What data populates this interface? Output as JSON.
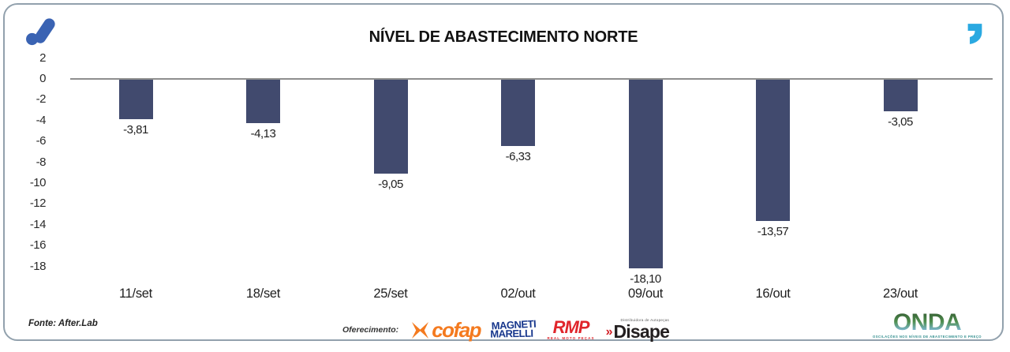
{
  "header": {
    "title": "NÍVEL DE ABASTECIMENTO NORTE",
    "brand_logo_color": "#3a63b3",
    "quote_icon_color": "#2aa9e1"
  },
  "chart_data": {
    "type": "bar",
    "title": "NÍVEL DE ABASTECIMENTO NORTE",
    "categories": [
      "11/set",
      "18/set",
      "25/set",
      "02/out",
      "09/out",
      "16/out",
      "23/out"
    ],
    "values": [
      -3.81,
      -4.13,
      -9.05,
      -6.33,
      -18.1,
      -13.57,
      -3.05
    ],
    "value_labels": [
      "-3,81",
      "-4,13",
      "-9,05",
      "-6,33",
      "-18,10",
      "-13,57",
      "-3,05"
    ],
    "y_ticks": [
      2,
      0,
      -2,
      -4,
      -6,
      -8,
      -10,
      -12,
      -14,
      -16,
      -18
    ],
    "ylim": [
      -18,
      2
    ],
    "xlabel": "",
    "ylabel": "",
    "grid": false,
    "legend": null,
    "bar_color": "#414a6e",
    "axis_line_color": "#8e8e8e"
  },
  "footer": {
    "source": "Fonte: After.Lab",
    "sponsor_label": "Oferecimento:",
    "sponsors": {
      "cofap": {
        "name": "cofap",
        "color": "#f47a1f"
      },
      "magneti": {
        "line1": "MAGNETI",
        "line2": "MARELLI",
        "color": "#16368c"
      },
      "rmp": {
        "name": "RMP",
        "sub": "REAL MOTO PEÇAS",
        "color": "#e0252b"
      },
      "disape": {
        "name": "Disape",
        "top": "Distribuidora de Autopeças",
        "chevrons": "»",
        "accent": "#d22027"
      }
    },
    "onda": {
      "name": "ONDA",
      "tagline": "OSCILAÇÕES NOS NÍVEIS DE ABASTECIMENTO E PREÇO"
    }
  }
}
